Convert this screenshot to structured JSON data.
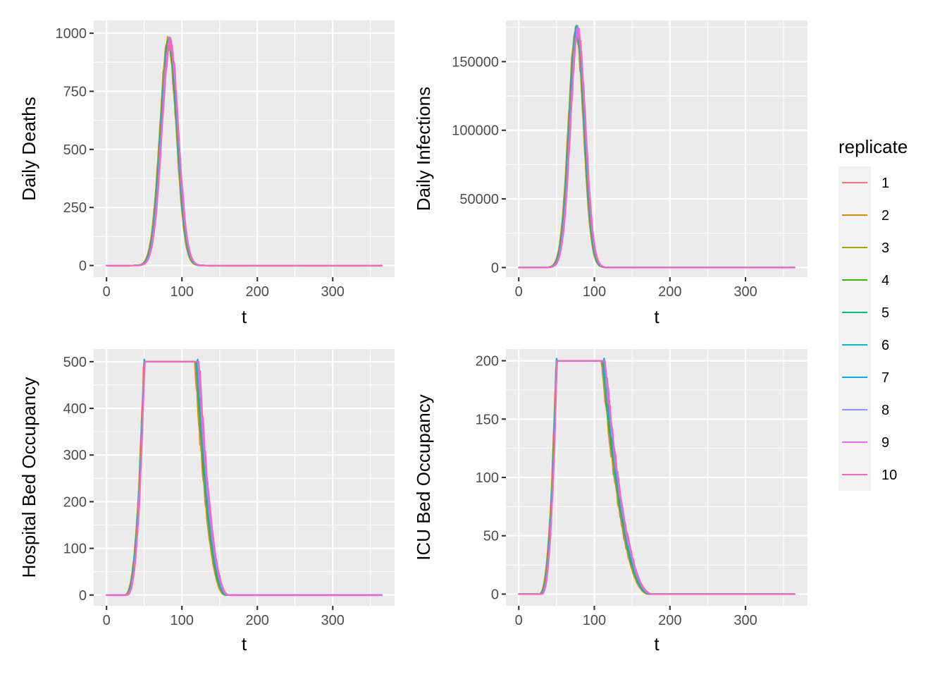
{
  "chart_data": [
    {
      "type": "line",
      "xlabel": "t",
      "ylabel": "Daily Deaths",
      "xlim": [
        -17,
        382
      ],
      "ylim": [
        -50,
        1055
      ],
      "x_ticks": [
        0,
        100,
        200,
        300
      ],
      "x_tick_labels": [
        "0",
        "100",
        "200",
        "300"
      ],
      "y_ticks": [
        0,
        250,
        500,
        750,
        1000
      ],
      "y_tick_labels": [
        "0",
        "250",
        "500",
        "750",
        "1000"
      ],
      "grid": true,
      "curve": {
        "shape": "peak",
        "peak_t": 83,
        "peak_value": 960,
        "rise_width": 11,
        "fall_width": 11
      }
    },
    {
      "type": "line",
      "xlabel": "t",
      "ylabel": "Daily Infections",
      "xlim": [
        -17,
        382
      ],
      "ylim": [
        -7000,
        180000
      ],
      "x_ticks": [
        0,
        100,
        200,
        300
      ],
      "x_tick_labels": [
        "0",
        "100",
        "200",
        "300"
      ],
      "y_ticks": [
        0,
        50000,
        100000,
        150000
      ],
      "y_tick_labels": [
        "0",
        "50000",
        "100000",
        "150000"
      ],
      "grid": true,
      "curve": {
        "shape": "peak",
        "peak_t": 77,
        "peak_value": 172000,
        "rise_width": 10,
        "fall_width": 10
      }
    },
    {
      "type": "line",
      "xlabel": "t",
      "ylabel": "Hospital Bed Occupancy",
      "xlim": [
        -17,
        382
      ],
      "ylim": [
        -23,
        527
      ],
      "x_ticks": [
        0,
        100,
        200,
        300
      ],
      "x_tick_labels": [
        "0",
        "100",
        "200",
        "300"
      ],
      "y_ticks": [
        0,
        100,
        200,
        300,
        400,
        500
      ],
      "y_tick_labels": [
        "0",
        "100",
        "200",
        "300",
        "400",
        "500"
      ],
      "grid": true,
      "curve": {
        "shape": "plateau",
        "cap": 500,
        "rise_start": 25,
        "rise_end": 50,
        "fall_start": 120,
        "fall_end": 160
      }
    },
    {
      "type": "line",
      "xlabel": "t",
      "ylabel": "ICU Bed Occupancy",
      "xlim": [
        -17,
        382
      ],
      "ylim": [
        -10,
        210
      ],
      "x_ticks": [
        0,
        100,
        200,
        300
      ],
      "x_tick_labels": [
        "0",
        "100",
        "200",
        "300"
      ],
      "y_ticks": [
        0,
        50,
        100,
        150,
        200
      ],
      "y_tick_labels": [
        "0",
        "50",
        "100",
        "150",
        "200"
      ],
      "grid": true,
      "curve": {
        "shape": "plateau",
        "cap": 200,
        "rise_start": 28,
        "rise_end": 50,
        "fall_start": 112,
        "fall_end": 175
      }
    }
  ],
  "legend": {
    "title": "replicate",
    "items": [
      {
        "label": "1",
        "color": "#F8766D"
      },
      {
        "label": "2",
        "color": "#D89000"
      },
      {
        "label": "3",
        "color": "#A3A500"
      },
      {
        "label": "4",
        "color": "#39B600"
      },
      {
        "label": "5",
        "color": "#00BF7D"
      },
      {
        "label": "6",
        "color": "#00BFC4"
      },
      {
        "label": "7",
        "color": "#00B0F6"
      },
      {
        "label": "8",
        "color": "#9590FF"
      },
      {
        "label": "9",
        "color": "#E76BF3"
      },
      {
        "label": "10",
        "color": "#FF62BC"
      }
    ]
  },
  "t_range": [
    0,
    365
  ]
}
